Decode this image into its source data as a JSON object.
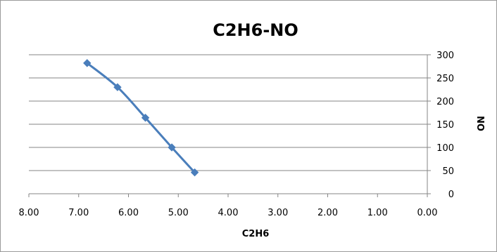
{
  "chart_data": {
    "type": "scatter",
    "title": "C2H6-NO",
    "xlabel": "C2H6",
    "ylabel": "NO",
    "x_reversed": true,
    "y_axis_side": "right",
    "xlim": [
      0,
      8
    ],
    "ylim": [
      0,
      300
    ],
    "x_ticks": [
      "8.00",
      "7.00",
      "6.00",
      "5.00",
      "4.00",
      "3.00",
      "2.00",
      "1.00",
      "0.00"
    ],
    "x_tick_values": [
      8,
      7,
      6,
      5,
      4,
      3,
      2,
      1,
      0
    ],
    "y_ticks": [
      "0",
      "50",
      "100",
      "150",
      "200",
      "250",
      "300"
    ],
    "y_tick_values": [
      0,
      50,
      100,
      150,
      200,
      250,
      300
    ],
    "grid": "horizontal",
    "legend": "none",
    "series": [
      {
        "color": "#4a7ebb",
        "marker": "diamond",
        "points": [
          {
            "x": 6.83,
            "y": 282
          },
          {
            "x": 6.22,
            "y": 230
          },
          {
            "x": 5.66,
            "y": 164
          },
          {
            "x": 5.13,
            "y": 100
          },
          {
            "x": 4.67,
            "y": 46
          }
        ]
      }
    ]
  }
}
